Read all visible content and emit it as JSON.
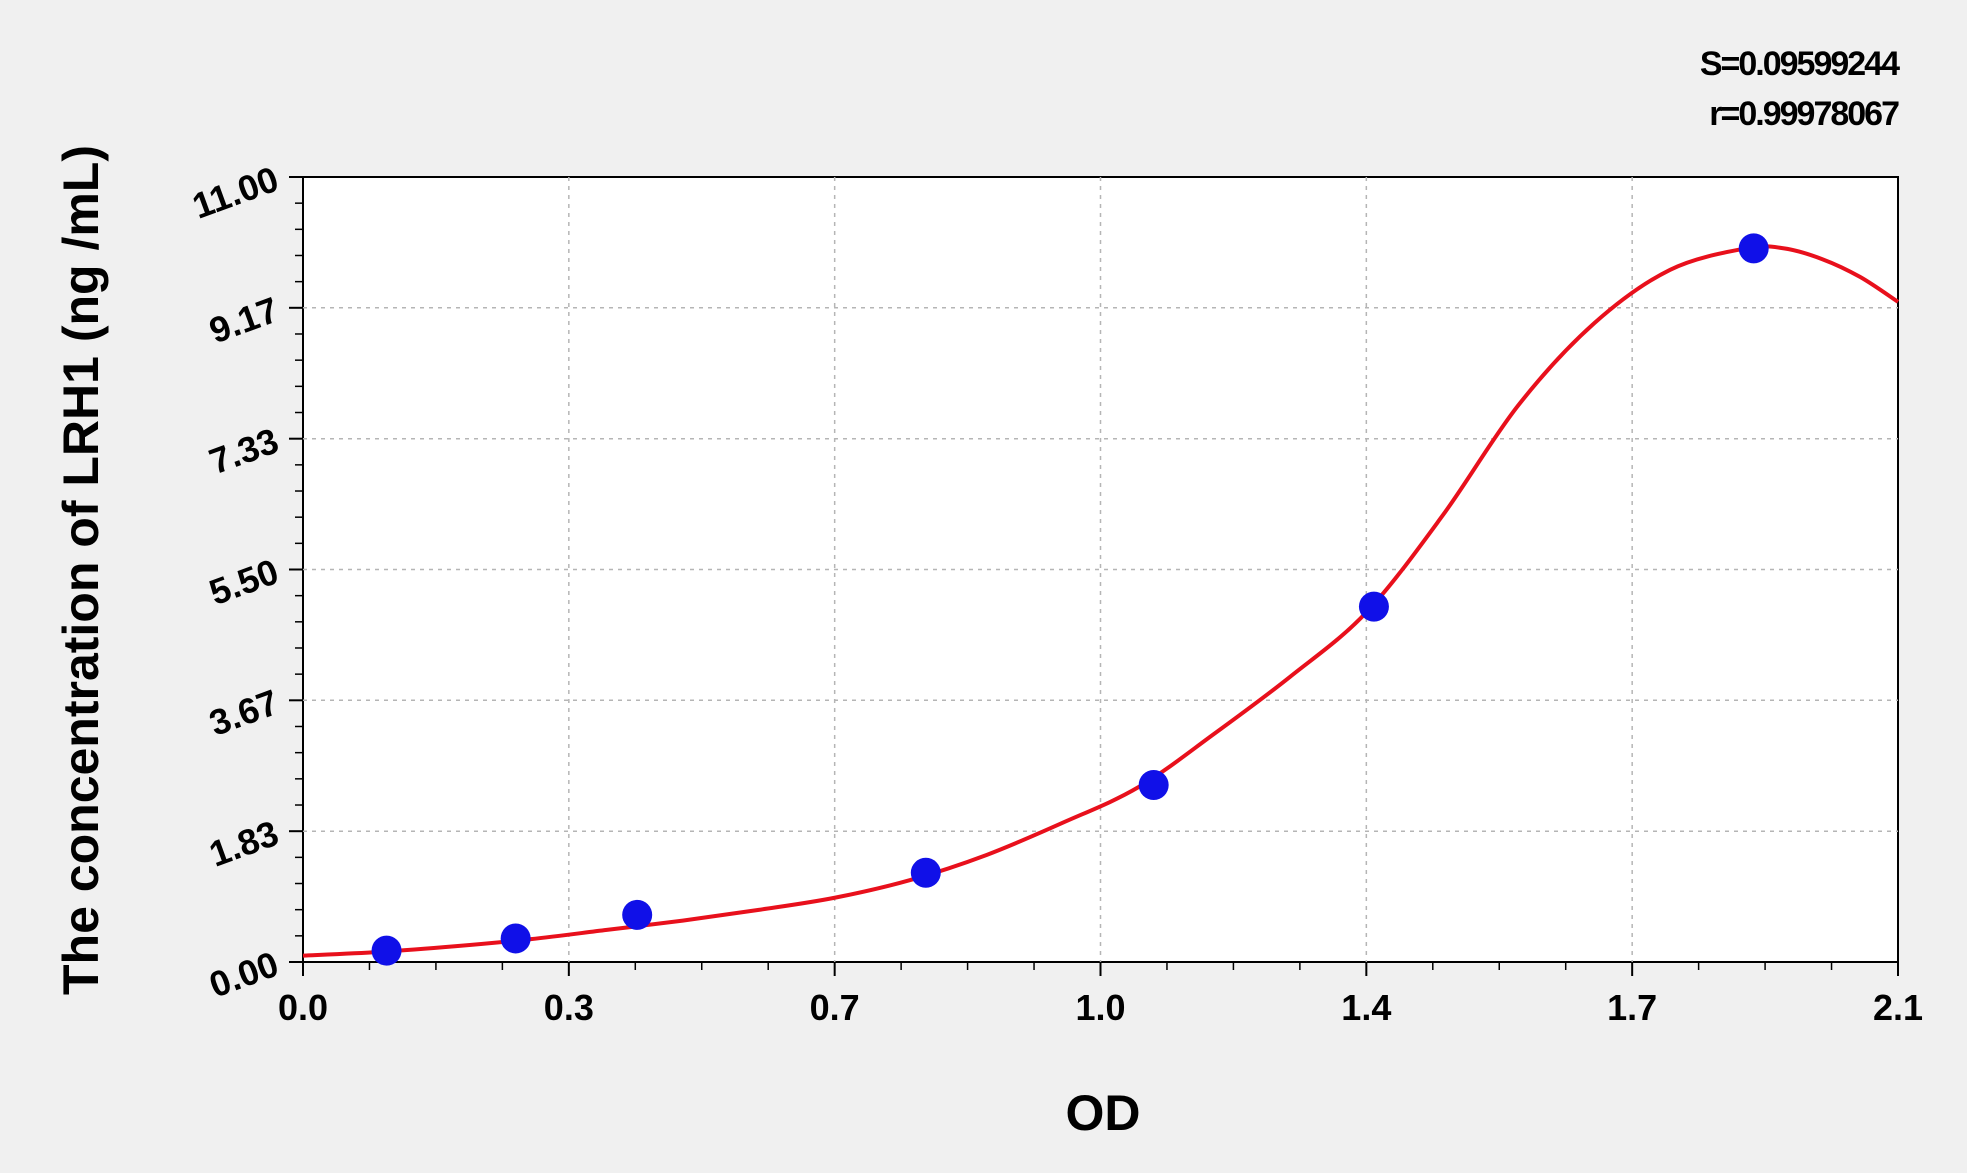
{
  "chart_data": {
    "type": "scatter",
    "title": "",
    "xlabel": "OD",
    "ylabel": "The concentration of LRH1 (ng /mL)",
    "xlim": [
      0.0,
      2.1
    ],
    "ylim": [
      0.0,
      11.0
    ],
    "x_ticks": [
      {
        "value": 0.0,
        "label": "0.0"
      },
      {
        "value": 0.35,
        "label": "0.3"
      },
      {
        "value": 0.7,
        "label": "0.7"
      },
      {
        "value": 1.05,
        "label": "1.0"
      },
      {
        "value": 1.4,
        "label": "1.4"
      },
      {
        "value": 1.75,
        "label": "1.7"
      },
      {
        "value": 2.1,
        "label": "2.1"
      }
    ],
    "y_ticks": [
      {
        "value": 0.0,
        "label": "0.00"
      },
      {
        "value": 1.833,
        "label": "1.83"
      },
      {
        "value": 3.667,
        "label": "3.67"
      },
      {
        "value": 5.5,
        "label": "5.50"
      },
      {
        "value": 7.333,
        "label": "7.33"
      },
      {
        "value": 9.167,
        "label": "9.17"
      },
      {
        "value": 11.0,
        "label": "11.00"
      }
    ],
    "grid": true,
    "series": [
      {
        "kind": "points",
        "color": "#1010e8",
        "x": [
          0.11,
          0.28,
          0.44,
          0.82,
          1.12,
          1.41,
          1.91
        ],
        "y": [
          0.16,
          0.33,
          0.66,
          1.25,
          2.48,
          4.98,
          10.0
        ]
      },
      {
        "kind": "fitted-curve",
        "color": "#e8101c",
        "x": [
          0.0,
          0.1,
          0.2,
          0.3,
          0.4,
          0.5,
          0.6,
          0.7,
          0.8,
          0.9,
          1.0,
          1.1,
          1.2,
          1.3,
          1.4,
          1.5,
          1.6,
          1.7,
          1.8,
          1.9,
          1.95,
          2.0,
          2.05,
          2.1
        ],
        "y": [
          0.09,
          0.14,
          0.22,
          0.32,
          0.45,
          0.58,
          0.73,
          0.9,
          1.15,
          1.5,
          1.95,
          2.45,
          3.2,
          4.0,
          4.9,
          6.25,
          7.8,
          8.95,
          9.7,
          10.0,
          10.0,
          9.85,
          9.6,
          9.25
        ]
      }
    ],
    "annotations": [
      {
        "text": "S=0.09599244"
      },
      {
        "text": "r=0.99978067"
      }
    ]
  }
}
